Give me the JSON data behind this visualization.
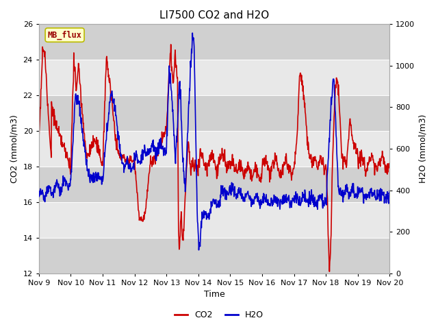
{
  "title": "LI7500 CO2 and H2O",
  "xlabel": "Time",
  "ylabel_left": "CO2 (mmol/m3)",
  "ylabel_right": "H2O (mmol/m3)",
  "ylim_left": [
    12,
    26
  ],
  "ylim_right": [
    0,
    1200
  ],
  "yticks_left": [
    12,
    14,
    16,
    18,
    20,
    22,
    24,
    26
  ],
  "yticks_right": [
    0,
    200,
    400,
    600,
    800,
    1000,
    1200
  ],
  "xtick_labels": [
    "Nov 9",
    "Nov 10",
    "Nov 11",
    "Nov 12",
    "Nov 13",
    "Nov 14",
    "Nov 15",
    "Nov 16",
    "Nov 17",
    "Nov 18",
    "Nov 19",
    "Nov 20"
  ],
  "co2_color": "#cc0000",
  "h2o_color": "#0000cc",
  "legend_label_co2": "CO2",
  "legend_label_h2o": "H2O",
  "tag_text": "MB_flux",
  "tag_bg": "#ffffcc",
  "tag_border": "#bbbb00",
  "fig_bg": "#ffffff",
  "plot_bg_light": "#e8e8e8",
  "plot_bg_dark": "#d0d0d0",
  "grid_color": "#ffffff",
  "linewidth": 1.2,
  "title_fontsize": 11,
  "axis_label_fontsize": 9,
  "tick_fontsize": 8,
  "legend_fontsize": 9
}
